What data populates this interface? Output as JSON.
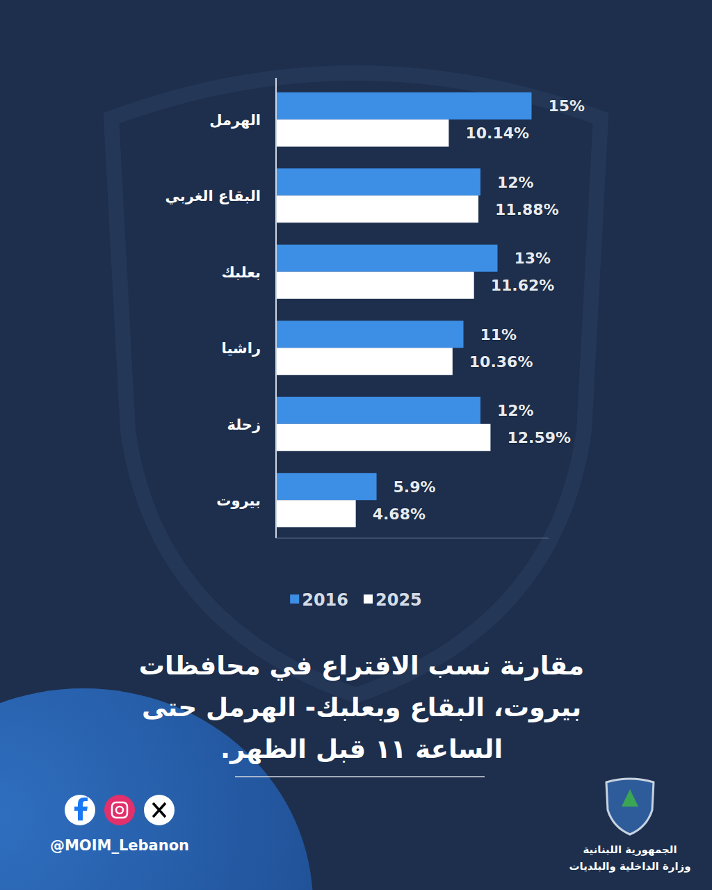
{
  "chart_data": {
    "type": "bar",
    "orientation": "horizontal",
    "title": "مقارنة نسب الاقتراع في محافظات بيروت، البقاع وبعلبك- الهرمل حتى الساعة ١١ قبل الظهر.",
    "categories": [
      "الهرمل",
      "البقاع الغربي",
      "بعلبك",
      "راشيا",
      "زحلة",
      "بيروت"
    ],
    "series": [
      {
        "name": "2016",
        "color": "#3d8fe6",
        "values": [
          15,
          12,
          13,
          11,
          12,
          5.9
        ],
        "value_labels": [
          "15%",
          "12%",
          "13%",
          "11%",
          "12%",
          "5.9%"
        ]
      },
      {
        "name": "2025",
        "color": "#ffffff",
        "values": [
          10.14,
          11.88,
          11.62,
          10.36,
          12.59,
          4.68
        ],
        "value_labels": [
          "10.14%",
          "11.88%",
          "11.62%",
          "10.36%",
          "12.59%",
          "4.68%"
        ]
      }
    ],
    "xlim": [
      0,
      16
    ],
    "grid": false,
    "legend": "bottom",
    "data_labels": true,
    "tick_labels": "y"
  },
  "footer": {
    "handle": "@MOIM_Lebanon",
    "org": [
      "الجمهورية اللبنانية",
      "وزارة الداخلية والبلديات"
    ]
  }
}
